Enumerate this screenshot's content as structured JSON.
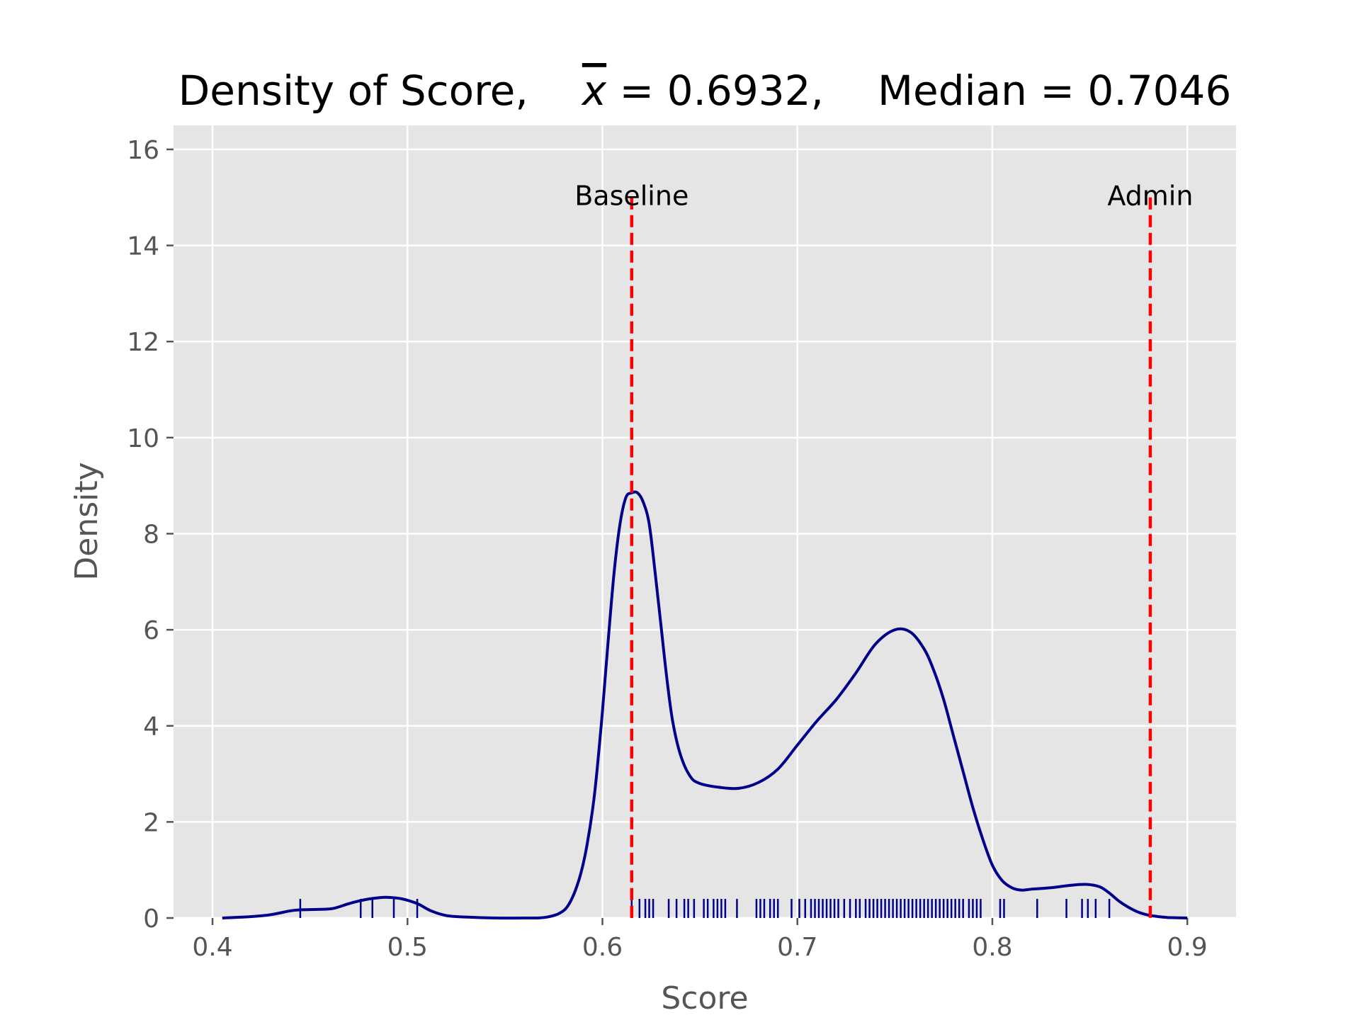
{
  "chart_data": {
    "type": "line",
    "title": {
      "prefix": "Density of Score,",
      "mean_symbol": "x",
      "mean_text": " = 0.6932,",
      "median_text": "Median = 0.7046"
    },
    "xlabel": "Score",
    "ylabel": "Density",
    "xlim": [
      0.38,
      0.925
    ],
    "ylim": [
      0,
      16.5
    ],
    "xticks": [
      0.4,
      0.5,
      0.6,
      0.7,
      0.8,
      0.9
    ],
    "xtick_labels": [
      "0.4",
      "0.5",
      "0.6",
      "0.7",
      "0.8",
      "0.9"
    ],
    "yticks": [
      0,
      2,
      4,
      6,
      8,
      10,
      12,
      14,
      16
    ],
    "ytick_labels": [
      "0",
      "2",
      "4",
      "6",
      "8",
      "10",
      "12",
      "14",
      "16"
    ],
    "grid": true,
    "style": "ggplot",
    "density_curve": {
      "color": "#00008b",
      "x": [
        0.405,
        0.42,
        0.43,
        0.44,
        0.445,
        0.455,
        0.462,
        0.47,
        0.478,
        0.485,
        0.49,
        0.497,
        0.505,
        0.512,
        0.52,
        0.53,
        0.545,
        0.56,
        0.57,
        0.578,
        0.583,
        0.588,
        0.592,
        0.596,
        0.6,
        0.603,
        0.606,
        0.609,
        0.612,
        0.615,
        0.618,
        0.621,
        0.624,
        0.627,
        0.63,
        0.633,
        0.636,
        0.64,
        0.645,
        0.65,
        0.66,
        0.67,
        0.68,
        0.69,
        0.7,
        0.71,
        0.72,
        0.73,
        0.74,
        0.75,
        0.758,
        0.765,
        0.77,
        0.775,
        0.78,
        0.785,
        0.79,
        0.795,
        0.8,
        0.805,
        0.81,
        0.815,
        0.82,
        0.83,
        0.84,
        0.848,
        0.855,
        0.86,
        0.865,
        0.87,
        0.875,
        0.88,
        0.883,
        0.89,
        0.9
      ],
      "y": [
        0.0,
        0.03,
        0.07,
        0.15,
        0.17,
        0.18,
        0.2,
        0.3,
        0.38,
        0.42,
        0.43,
        0.4,
        0.3,
        0.15,
        0.05,
        0.02,
        0.0,
        0.0,
        0.01,
        0.1,
        0.3,
        0.8,
        1.5,
        2.6,
        4.3,
        5.8,
        7.2,
        8.2,
        8.75,
        8.85,
        8.85,
        8.65,
        8.2,
        7.2,
        6.1,
        5.0,
        4.1,
        3.4,
        2.95,
        2.8,
        2.72,
        2.7,
        2.82,
        3.1,
        3.6,
        4.1,
        4.55,
        5.1,
        5.7,
        6.0,
        5.95,
        5.6,
        5.15,
        4.55,
        3.8,
        3.05,
        2.3,
        1.65,
        1.1,
        0.78,
        0.63,
        0.58,
        0.6,
        0.63,
        0.68,
        0.7,
        0.65,
        0.52,
        0.35,
        0.22,
        0.12,
        0.06,
        0.04,
        0.01,
        0.0
      ]
    },
    "rug": {
      "color": "#00008b",
      "x": [
        0.445,
        0.476,
        0.482,
        0.493,
        0.505,
        0.615,
        0.619,
        0.622,
        0.624,
        0.626,
        0.634,
        0.638,
        0.642,
        0.644,
        0.647,
        0.652,
        0.654,
        0.657,
        0.659,
        0.661,
        0.663,
        0.669,
        0.679,
        0.681,
        0.683,
        0.686,
        0.688,
        0.69,
        0.697,
        0.701,
        0.704,
        0.707,
        0.709,
        0.711,
        0.713,
        0.715,
        0.717,
        0.719,
        0.721,
        0.724,
        0.727,
        0.73,
        0.732,
        0.735,
        0.737,
        0.739,
        0.741,
        0.743,
        0.745,
        0.747,
        0.749,
        0.751,
        0.753,
        0.755,
        0.757,
        0.759,
        0.761,
        0.763,
        0.765,
        0.767,
        0.769,
        0.771,
        0.773,
        0.775,
        0.777,
        0.779,
        0.781,
        0.783,
        0.785,
        0.788,
        0.79,
        0.792,
        0.794,
        0.804,
        0.806,
        0.823,
        0.838,
        0.846,
        0.849,
        0.853,
        0.86
      ]
    },
    "reference_lines": [
      {
        "label": "Baseline",
        "x": 0.615,
        "color": "#ff0000"
      },
      {
        "label": "Admin",
        "x": 0.881,
        "color": "#ff0000"
      }
    ],
    "reference_line_top": 15.0,
    "colors": {
      "plot_background": "#e5e5e5",
      "grid": "#ffffff",
      "tick": "#555555"
    }
  }
}
